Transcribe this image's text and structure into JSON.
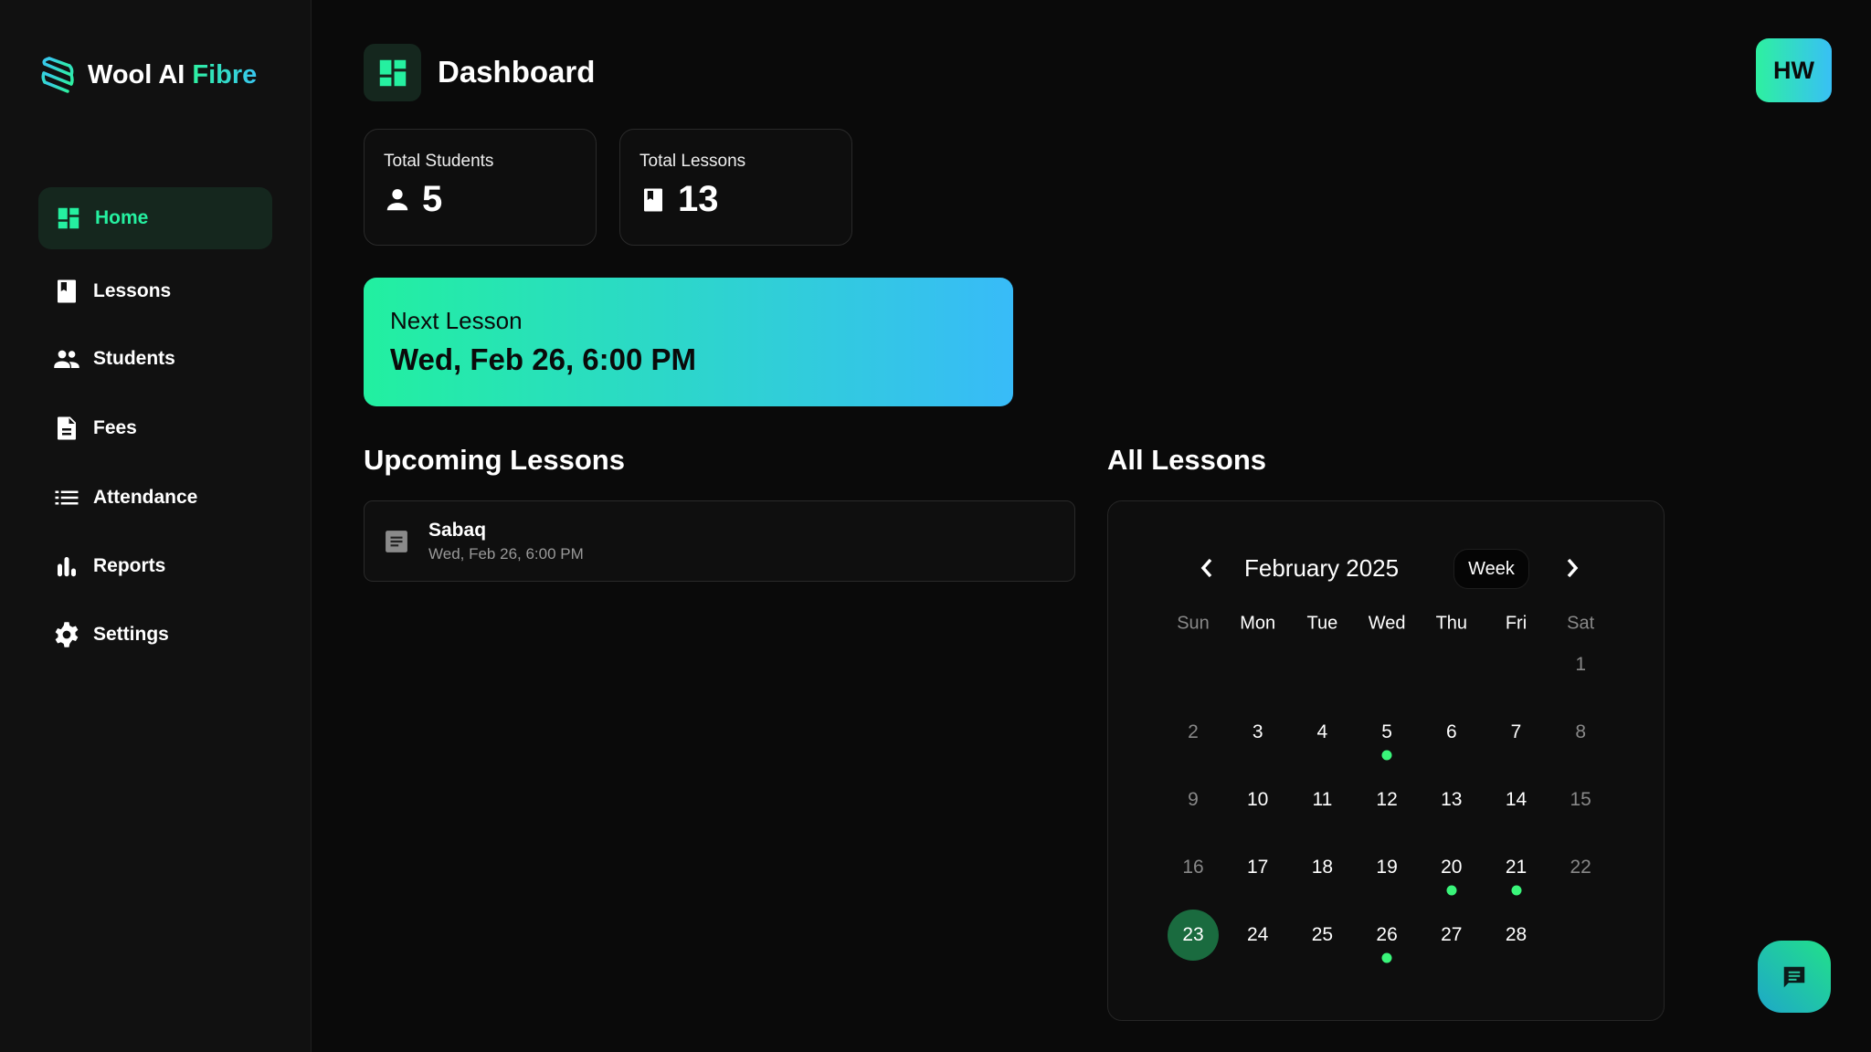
{
  "brand": {
    "name": "Wool AI",
    "accent": "Fibre"
  },
  "sidebar": {
    "items": [
      {
        "label": "Home",
        "icon": "dashboard-icon",
        "active": true
      },
      {
        "label": "Lessons",
        "icon": "book-icon"
      },
      {
        "label": "Students",
        "icon": "people-icon"
      },
      {
        "label": "Fees",
        "icon": "document-icon"
      },
      {
        "label": "Attendance",
        "icon": "list-icon"
      },
      {
        "label": "Reports",
        "icon": "bar-chart-icon"
      },
      {
        "label": "Settings",
        "icon": "gear-icon"
      }
    ]
  },
  "header": {
    "title": "Dashboard",
    "avatar": "HW"
  },
  "stats": [
    {
      "label": "Total Students",
      "value": "5",
      "icon": "person-icon"
    },
    {
      "label": "Total Lessons",
      "value": "13",
      "icon": "book-icon"
    }
  ],
  "next_lesson": {
    "label": "Next Lesson",
    "datetime": "Wed, Feb 26, 6:00 PM"
  },
  "upcoming": {
    "title": "Upcoming Lessons",
    "items": [
      {
        "title": "Sabaq",
        "datetime": "Wed, Feb 26, 6:00 PM"
      }
    ]
  },
  "calendar": {
    "title": "All Lessons",
    "month": "February 2025",
    "view_button": "Week",
    "weekdays": [
      "Sun",
      "Mon",
      "Tue",
      "Wed",
      "Thu",
      "Fri",
      "Sat"
    ],
    "first_weekday": 6,
    "days_in_month": 28,
    "today": 23,
    "lesson_days": [
      5,
      20,
      21,
      26
    ]
  },
  "colors": {
    "accent": "#25f0a0",
    "gradient_end": "#38bbf8",
    "today": "#1a6b3f",
    "lesson_dot": "#3af57a"
  }
}
